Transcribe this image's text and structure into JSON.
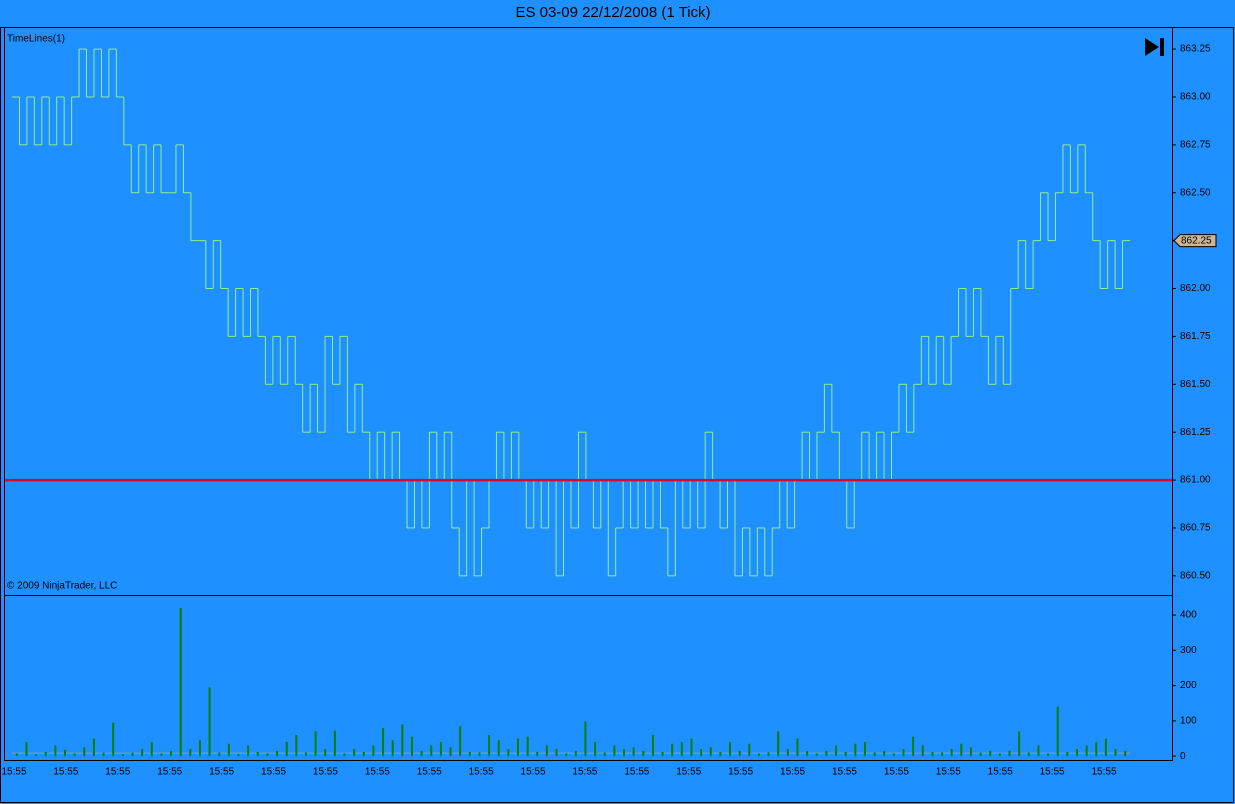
{
  "chart_data": [
    {
      "type": "line",
      "title": "ES 03-09  22/12/2008 (1 Tick)",
      "indicator_label": "TimeLines(1)",
      "copyright": "© 2009 NinjaTrader, LLC",
      "series": [
        {
          "color": "#90ee90",
          "values": [
            863.0,
            862.75,
            863.0,
            862.75,
            863.0,
            862.75,
            863.0,
            862.75,
            863.0,
            863.25,
            863.0,
            863.25,
            863.0,
            863.25,
            863.0,
            862.75,
            862.5,
            862.75,
            862.5,
            862.75,
            862.5,
            862.5,
            862.75,
            862.5,
            862.25,
            862.25,
            862.0,
            862.25,
            862.0,
            861.75,
            862.0,
            861.75,
            862.0,
            861.75,
            861.5,
            861.75,
            861.5,
            861.75,
            861.5,
            861.25,
            861.5,
            861.25,
            861.75,
            861.5,
            861.75,
            861.25,
            861.5,
            861.25,
            861.0,
            861.25,
            861.0,
            861.25,
            861.0,
            860.75,
            861.0,
            860.75,
            861.25,
            861.0,
            861.25,
            860.75,
            860.5,
            861.0,
            860.5,
            860.75,
            861.0,
            861.25,
            861.0,
            861.25,
            861.0,
            860.75,
            861.0,
            860.75,
            861.0,
            860.5,
            861.0,
            860.75,
            861.25,
            861.0,
            860.75,
            861.0,
            860.5,
            860.75,
            861.0,
            860.75,
            861.0,
            860.75,
            861.0,
            860.75,
            860.5,
            861.0,
            860.75,
            861.0,
            860.75,
            861.25,
            861.0,
            860.75,
            861.0,
            860.5,
            860.75,
            860.5,
            860.75,
            860.5,
            860.75,
            861.0,
            860.75,
            861.0,
            861.25,
            861.0,
            861.25,
            861.5,
            861.25,
            861.0,
            860.75,
            861.0,
            861.25,
            861.0,
            861.25,
            861.0,
            861.25,
            861.5,
            861.25,
            861.5,
            861.75,
            861.5,
            861.75,
            861.5,
            861.75,
            862.0,
            861.75,
            862.0,
            861.75,
            861.5,
            861.75,
            861.5,
            862.0,
            862.25,
            862.0,
            862.25,
            862.5,
            862.25,
            862.5,
            862.75,
            862.5,
            862.75,
            862.5,
            862.25,
            862.0,
            862.25,
            862.0,
            862.25
          ]
        }
      ],
      "reference_line": {
        "value": 861.0,
        "color": "#e0002a"
      },
      "last_price": {
        "value": 862.25,
        "label": "862.25"
      },
      "ylim": [
        860.4,
        863.36
      ],
      "yticks": [
        {
          "value": 860.5,
          "label": "860.50"
        },
        {
          "value": 860.75,
          "label": "860.75"
        },
        {
          "value": 861.0,
          "label": "861.00"
        },
        {
          "value": 861.25,
          "label": "861.25"
        },
        {
          "value": 861.5,
          "label": "861.50"
        },
        {
          "value": 861.75,
          "label": "861.75"
        },
        {
          "value": 862.0,
          "label": "862.00"
        },
        {
          "value": 862.25,
          "label": "862.25"
        },
        {
          "value": 862.5,
          "label": "862.50"
        },
        {
          "value": 862.75,
          "label": "862.75"
        },
        {
          "value": 863.0,
          "label": "863.00"
        },
        {
          "value": 863.25,
          "label": "863.25"
        }
      ]
    },
    {
      "type": "bar",
      "color": "#008000",
      "values": [
        8,
        40,
        5,
        12,
        30,
        18,
        8,
        25,
        50,
        10,
        95,
        6,
        10,
        20,
        40,
        8,
        15,
        420,
        20,
        45,
        195,
        10,
        35,
        6,
        30,
        12,
        8,
        15,
        40,
        60,
        10,
        70,
        20,
        72,
        8,
        20,
        12,
        30,
        80,
        45,
        90,
        55,
        15,
        30,
        40,
        25,
        85,
        12,
        10,
        60,
        45,
        20,
        50,
        55,
        12,
        30,
        20,
        8,
        15,
        98,
        40,
        10,
        30,
        20,
        25,
        15,
        60,
        12,
        35,
        40,
        50,
        20,
        25,
        12,
        40,
        15,
        35,
        8,
        10,
        70,
        20,
        50,
        15,
        8,
        15,
        30,
        12,
        35,
        40,
        10,
        15,
        8,
        20,
        55,
        30,
        12,
        10,
        20,
        35,
        25,
        10,
        15,
        8,
        15,
        70,
        10,
        30,
        8,
        140,
        12,
        20,
        30,
        40,
        50,
        20,
        15
      ],
      "ylim": [
        -11,
        454
      ],
      "yticks": [
        0,
        100,
        200,
        300,
        400
      ],
      "x_labels": [
        "15:55",
        "15:55",
        "15:55",
        "15:55",
        "15:55",
        "15:55",
        "15:55",
        "15:55",
        "15:55",
        "15:55",
        "15:55",
        "15:55",
        "15:55",
        "15:55",
        "15:55",
        "15:55",
        "15:55",
        "15:55",
        "15:55",
        "15:55",
        "15:55",
        "15:55"
      ]
    }
  ]
}
